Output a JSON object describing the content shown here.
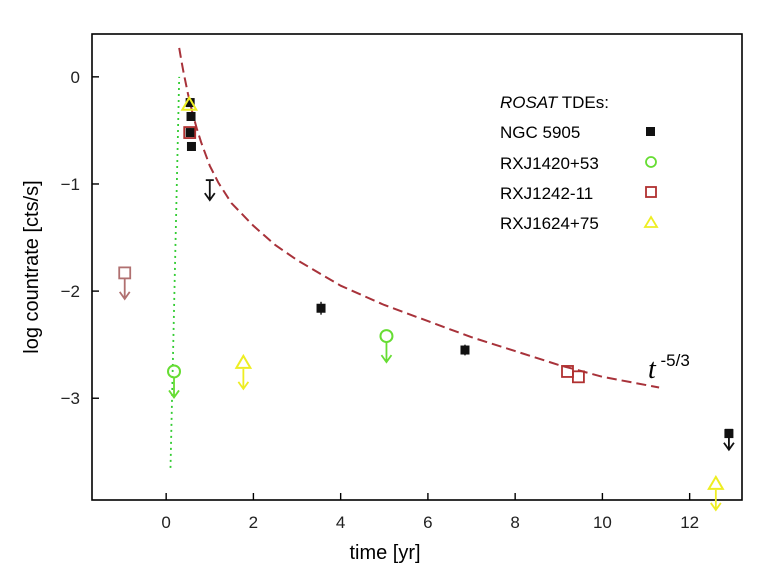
{
  "chart_data": {
    "type": "scatter",
    "title": "",
    "xlabel": "time [yr]",
    "ylabel": "log countrate [cts/s]",
    "xlim": [
      -1.7,
      13.2
    ],
    "ylim": [
      -3.95,
      0.4
    ],
    "xticks": [
      0,
      2,
      4,
      6,
      8,
      10,
      12
    ],
    "yticks": [
      0,
      -1,
      -2,
      -3
    ],
    "xtick_labels": [
      "0",
      "2",
      "4",
      "6",
      "8",
      "10",
      "12"
    ],
    "ytick_labels": [
      "0",
      "−1",
      "−2",
      "−3"
    ],
    "legend": {
      "title_italic": "ROSAT",
      "title_rest": " TDEs:",
      "position": "top-right"
    },
    "series": [
      {
        "name": "NGC 5905",
        "marker": "square-filled",
        "color": "#111111",
        "points": [
          {
            "x": 0.55,
            "y": -0.24,
            "err": 0.04
          },
          {
            "x": 0.57,
            "y": -0.37,
            "err": 0.04
          },
          {
            "x": 0.55,
            "y": -0.52,
            "err": 0.04
          },
          {
            "x": 0.58,
            "y": -0.65,
            "err": 0.04
          },
          {
            "x": 3.55,
            "y": -2.16,
            "err": 0.06
          },
          {
            "x": 6.85,
            "y": -2.55,
            "err": 0.05
          },
          {
            "x": 12.9,
            "y": -3.33,
            "err": 0.04
          }
        ],
        "upper_limits": [
          {
            "x": 1.0,
            "y": -1.02
          },
          {
            "x": 12.9,
            "y": -3.35
          }
        ]
      },
      {
        "name": "RXJ1420+53",
        "marker": "circle-open",
        "color": "#66dd33",
        "points": [],
        "upper_limits": [
          {
            "x": 0.18,
            "y": -2.75
          },
          {
            "x": 5.05,
            "y": -2.42
          }
        ]
      },
      {
        "name": "RXJ1242-11",
        "marker": "square-open",
        "color": "#b03030",
        "points": [
          {
            "x": 0.54,
            "y": -0.52
          },
          {
            "x": 9.2,
            "y": -2.75
          },
          {
            "x": 9.45,
            "y": -2.8
          }
        ],
        "upper_limits": [
          {
            "x": -0.95,
            "y": -1.83,
            "color": "#b07070"
          }
        ]
      },
      {
        "name": "RXJ1624+75",
        "marker": "triangle-open",
        "color": "#eeee22",
        "points": [
          {
            "x": 0.53,
            "y": -0.26
          }
        ],
        "upper_limits": [
          {
            "x": 1.77,
            "y": -2.67
          },
          {
            "x": 12.6,
            "y": -3.8
          }
        ]
      }
    ],
    "models": [
      {
        "name": "t^-5/3 decline",
        "style": "dashed",
        "color": "#a8323a",
        "t0": 0.0,
        "x_start": 0.3,
        "x_end": 11.3,
        "points": [
          [
            0.3,
            0.27
          ],
          [
            0.35,
            0.15
          ],
          [
            0.4,
            0.04
          ],
          [
            0.5,
            -0.16
          ],
          [
            0.6,
            -0.33
          ],
          [
            0.7,
            -0.48
          ],
          [
            0.8,
            -0.61
          ],
          [
            1.0,
            -0.83
          ],
          [
            1.2,
            -0.99
          ],
          [
            1.5,
            -1.18
          ],
          [
            2.0,
            -1.39
          ],
          [
            2.5,
            -1.57
          ],
          [
            3.0,
            -1.71
          ],
          [
            3.5,
            -1.83
          ],
          [
            4.0,
            -1.95
          ],
          [
            5.0,
            -2.13
          ],
          [
            6.0,
            -2.28
          ],
          [
            7.0,
            -2.43
          ],
          [
            8.0,
            -2.56
          ],
          [
            9.0,
            -2.69
          ],
          [
            10.0,
            -2.8
          ],
          [
            11.3,
            -2.9
          ]
        ]
      },
      {
        "name": "steep rise",
        "style": "dotted",
        "color": "#33cc33",
        "points": [
          [
            0.1,
            -3.65
          ],
          [
            0.3,
            0.0
          ]
        ]
      }
    ],
    "annotation": {
      "base": "t",
      "exponent": " -5/3",
      "position": "near curve end, right"
    }
  }
}
